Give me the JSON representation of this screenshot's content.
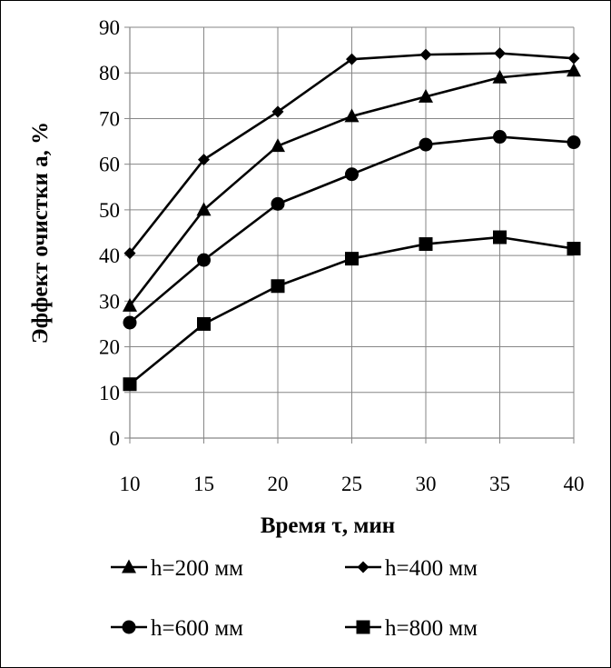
{
  "chart_data": {
    "type": "line",
    "x": [
      10,
      15,
      20,
      25,
      30,
      35,
      40
    ],
    "series": [
      {
        "name": "h=200 мм",
        "marker": "triangle",
        "values": [
          29,
          50,
          64,
          70.5,
          74.8,
          79,
          80.5
        ]
      },
      {
        "name": "h=400 мм",
        "marker": "diamond",
        "values": [
          40.5,
          61,
          71.5,
          83,
          84,
          84.3,
          83.2
        ]
      },
      {
        "name": "h=600 мм",
        "marker": "circle",
        "values": [
          25.3,
          39,
          51.3,
          57.8,
          64.3,
          66,
          64.8
        ]
      },
      {
        "name": "h=800 мм",
        "marker": "square",
        "values": [
          11.8,
          25,
          33.3,
          39.3,
          42.5,
          44,
          41.5
        ]
      }
    ],
    "xticks": [
      "10",
      "15",
      "20",
      "25",
      "30",
      "35",
      "40"
    ],
    "yticks": [
      "0",
      "10",
      "20",
      "30",
      "40",
      "50",
      "60",
      "70",
      "80",
      "90"
    ],
    "xlim": [
      10,
      40
    ],
    "ylim": [
      0,
      90
    ],
    "xlabel": "Время τ, мин",
    "ylabel": "Эффект очистки а, %",
    "grid": true,
    "legend_position": "bottom",
    "line_color": "#000000",
    "grid_color": "#868686"
  }
}
